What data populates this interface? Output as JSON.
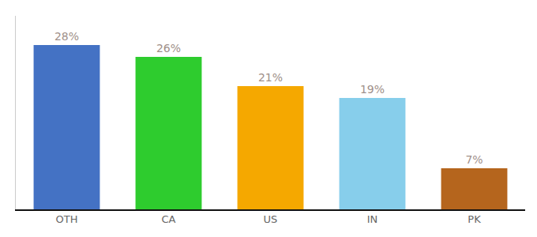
{
  "chart_data": {
    "type": "bar",
    "categories": [
      "OTH",
      "CA",
      "US",
      "IN",
      "PK"
    ],
    "values": [
      28,
      26,
      21,
      19,
      7
    ],
    "value_labels": [
      "28%",
      "26%",
      "21%",
      "19%",
      "7%"
    ],
    "colors": [
      "#4472c4",
      "#2ecc2e",
      "#f5a800",
      "#87ceeb",
      "#b5651d"
    ],
    "ylim": [
      0,
      33
    ],
    "data_labels": true,
    "tick_labels": "x",
    "grid": false
  }
}
